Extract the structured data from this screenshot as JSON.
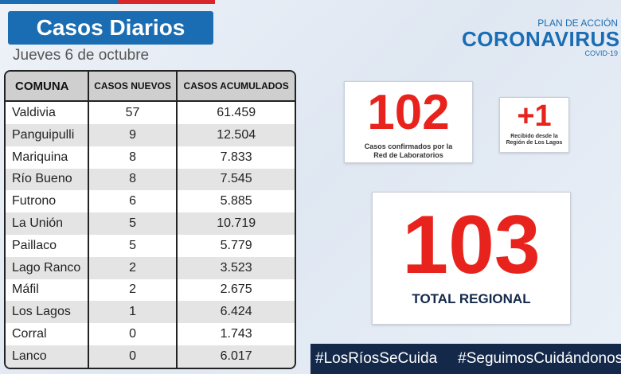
{
  "header": {
    "title": "Casos Diarios",
    "date": "Jueves 6 de octubre"
  },
  "logo": {
    "plan": "PLAN DE ACCIÓN",
    "name": "CORONAVIRUS",
    "sub": "COVID-19"
  },
  "table": {
    "columns": [
      "COMUNA",
      "CASOS NUEVOS",
      "CASOS ACUMULADOS"
    ],
    "rows": [
      [
        "Valdivia",
        "57",
        "61.459"
      ],
      [
        "Panguipulli",
        "9",
        "12.504"
      ],
      [
        "Mariquina",
        "8",
        "7.833"
      ],
      [
        "Río Bueno",
        "8",
        "7.545"
      ],
      [
        "Futrono",
        "6",
        "5.885"
      ],
      [
        "La Unión",
        "5",
        "10.719"
      ],
      [
        "Paillaco",
        "5",
        "5.779"
      ],
      [
        "Lago Ranco",
        "2",
        "3.523"
      ],
      [
        "Máfil",
        "2",
        "2.675"
      ],
      [
        "Los Lagos",
        "1",
        "6.424"
      ],
      [
        "Corral",
        "0",
        "1.743"
      ],
      [
        "Lanco",
        "0",
        "6.017"
      ]
    ]
  },
  "confirmed": {
    "value": "102",
    "caption": [
      "Casos confirmados por la",
      "Red de Laboratorios"
    ]
  },
  "received": {
    "value": "+1",
    "caption": [
      "Recibido desde la",
      "Región de Los Lagos"
    ]
  },
  "total": {
    "value": "103",
    "label": "TOTAL REGIONAL"
  },
  "hashtags": [
    "#LosRíosSeCuida",
    "#SeguimosCuidándonos"
  ]
}
